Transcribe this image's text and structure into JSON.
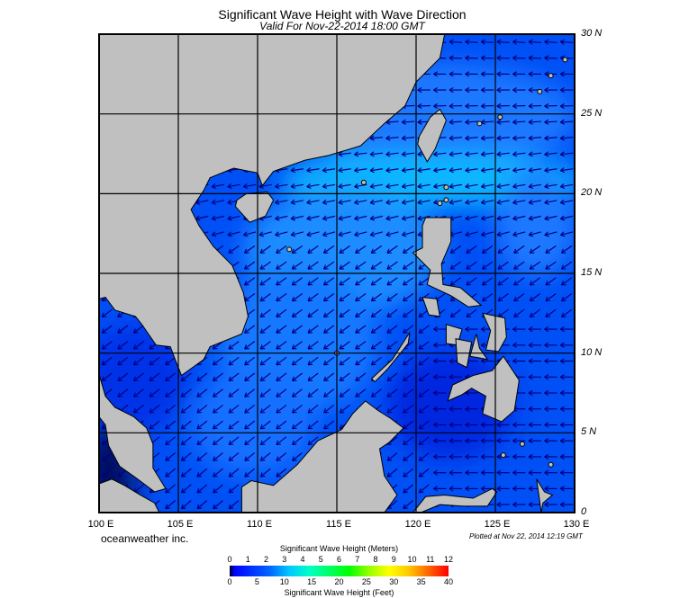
{
  "title": "Significant Wave Height with Wave Direction",
  "subtitle": "Valid For Nov-22-2014 18:00 GMT",
  "lat_labels": [
    "30 N",
    "25 N",
    "20 N",
    "15 N",
    "10 N",
    "5 N",
    "0"
  ],
  "lon_labels": [
    "100 E",
    "105 E",
    "110 E",
    "115 E",
    "120 E",
    "125 E",
    "130 E"
  ],
  "credit": "oceanweather inc.",
  "plotted": "Plotted at Nov 22, 2014 12:19 GMT",
  "colorbar": {
    "meters_title": "Significant Wave Height (Meters)",
    "feet_title": "Significant Wave Height (Feet)",
    "meters_ticks": [
      "0",
      "1",
      "2",
      "3",
      "4",
      "5",
      "6",
      "7",
      "8",
      "9",
      "10",
      "11",
      "12"
    ],
    "feet_ticks": [
      "0",
      "5",
      "10",
      "15",
      "20",
      "25",
      "30",
      "35",
      "40"
    ],
    "colors": [
      "#000000",
      "#0000ff",
      "#0064ff",
      "#00c8ff",
      "#00ffc8",
      "#00ff64",
      "#00ff00",
      "#96ff00",
      "#ffff00",
      "#ffc800",
      "#ff6400",
      "#ff0000"
    ]
  },
  "map": {
    "lon_range": [
      100,
      130
    ],
    "lat_range": [
      0,
      30
    ],
    "grid_step_deg": 5,
    "land_color": "#c0c0c0",
    "ocean_color": "#0050f5",
    "arrow_color": "#000080"
  }
}
